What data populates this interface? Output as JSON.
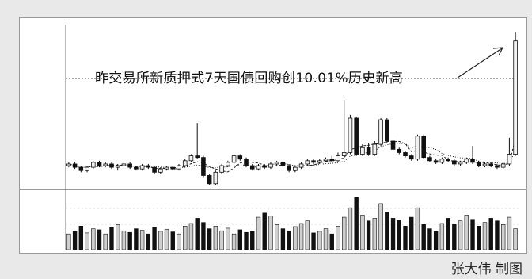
{
  "headline": "昨交易所新质押式7天国债回购创10.01%历史新高",
  "credit": "张大伟 制图",
  "chart_data": {
    "type": "candlestick-with-volume",
    "title": "",
    "xlabel": "",
    "ylabel": "",
    "price_axis_labels": [
      "",
      "",
      "",
      ""
    ],
    "volume_axis_labels": [
      "",
      "",
      ""
    ],
    "volume_legend": "",
    "price_ylim": [
      0.5,
      10.5
    ],
    "reference_line": 7.2,
    "colors": {
      "up": "#f2f2f2",
      "down": "#111111",
      "ma": "#222222",
      "edge": "#111111"
    },
    "candles": [
      [
        1.9,
        2.0,
        2.1,
        1.8
      ],
      [
        2.0,
        1.8,
        2.1,
        1.7
      ],
      [
        1.8,
        1.6,
        1.9,
        1.5
      ],
      [
        1.6,
        1.8,
        1.9,
        1.5
      ],
      [
        1.8,
        2.1,
        2.2,
        1.7
      ],
      [
        2.1,
        1.9,
        2.2,
        1.8
      ],
      [
        1.9,
        2.0,
        2.1,
        1.8
      ],
      [
        2.0,
        1.8,
        2.1,
        1.7
      ],
      [
        1.8,
        1.9,
        2.0,
        1.6
      ],
      [
        1.9,
        2.0,
        2.1,
        1.8
      ],
      [
        2.0,
        1.8,
        2.1,
        1.7
      ],
      [
        1.8,
        1.7,
        1.9,
        1.6
      ],
      [
        1.7,
        1.9,
        2.0,
        1.6
      ],
      [
        1.9,
        1.8,
        2.0,
        1.7
      ],
      [
        1.8,
        1.5,
        1.9,
        1.4
      ],
      [
        1.5,
        1.7,
        1.8,
        1.4
      ],
      [
        1.7,
        1.8,
        1.9,
        1.6
      ],
      [
        1.8,
        1.7,
        1.9,
        1.6
      ],
      [
        1.7,
        1.9,
        2.0,
        1.6
      ],
      [
        1.9,
        2.2,
        2.3,
        1.8
      ],
      [
        2.2,
        2.5,
        2.6,
        2.1
      ],
      [
        2.5,
        2.4,
        4.5,
        2.3
      ],
      [
        2.4,
        1.3,
        2.5,
        1.2
      ],
      [
        1.3,
        0.8,
        1.4,
        0.7
      ],
      [
        0.8,
        1.5,
        1.6,
        0.7
      ],
      [
        1.5,
        1.9,
        2.0,
        1.4
      ],
      [
        1.9,
        2.1,
        2.2,
        1.8
      ],
      [
        2.1,
        2.5,
        2.6,
        2.0
      ],
      [
        2.5,
        2.3,
        2.6,
        2.2
      ],
      [
        2.3,
        1.9,
        2.4,
        1.8
      ],
      [
        1.9,
        1.7,
        2.0,
        1.6
      ],
      [
        1.7,
        1.9,
        2.0,
        1.6
      ],
      [
        1.9,
        1.8,
        2.0,
        1.7
      ],
      [
        1.8,
        2.0,
        2.1,
        1.7
      ],
      [
        2.0,
        2.1,
        2.2,
        1.9
      ],
      [
        2.1,
        1.9,
        2.2,
        1.8
      ],
      [
        1.9,
        1.6,
        2.0,
        1.5
      ],
      [
        1.6,
        1.8,
        1.9,
        1.5
      ],
      [
        1.8,
        2.0,
        2.1,
        1.7
      ],
      [
        2.0,
        2.2,
        2.3,
        1.9
      ],
      [
        2.2,
        2.1,
        2.3,
        2.0
      ],
      [
        2.1,
        2.2,
        2.3,
        2.0
      ],
      [
        2.2,
        2.3,
        2.4,
        2.1
      ],
      [
        2.3,
        2.2,
        2.5,
        2.1
      ],
      [
        2.2,
        2.5,
        2.7,
        2.1
      ],
      [
        2.5,
        2.7,
        5.9,
        2.4
      ],
      [
        2.7,
        4.8,
        5.0,
        2.6
      ],
      [
        4.8,
        2.6,
        4.9,
        2.5
      ],
      [
        2.6,
        3.0,
        3.2,
        2.5
      ],
      [
        3.0,
        2.6,
        3.3,
        2.5
      ],
      [
        2.6,
        3.2,
        3.4,
        2.5
      ],
      [
        3.2,
        4.7,
        4.8,
        3.1
      ],
      [
        4.7,
        3.4,
        4.8,
        3.3
      ],
      [
        3.4,
        2.9,
        3.5,
        2.8
      ],
      [
        2.9,
        2.7,
        3.0,
        2.6
      ],
      [
        2.7,
        2.5,
        2.8,
        2.4
      ],
      [
        2.5,
        2.3,
        2.6,
        2.2
      ],
      [
        2.3,
        3.7,
        3.8,
        2.2
      ],
      [
        3.7,
        2.4,
        3.8,
        2.3
      ],
      [
        2.4,
        2.2,
        2.5,
        2.1
      ],
      [
        2.2,
        2.1,
        2.3,
        2.0
      ],
      [
        2.1,
        2.3,
        2.4,
        2.0
      ],
      [
        2.3,
        2.2,
        2.4,
        2.1
      ],
      [
        2.2,
        2.0,
        2.3,
        1.9
      ],
      [
        2.0,
        2.1,
        2.2,
        1.9
      ],
      [
        2.1,
        2.3,
        2.4,
        2.0
      ],
      [
        2.3,
        2.1,
        3.1,
        2.0
      ],
      [
        2.1,
        1.9,
        2.2,
        1.8
      ],
      [
        1.9,
        2.0,
        2.1,
        1.8
      ],
      [
        2.0,
        1.9,
        2.1,
        1.8
      ],
      [
        1.9,
        1.8,
        2.0,
        1.7
      ],
      [
        1.8,
        2.0,
        2.1,
        1.7
      ],
      [
        2.0,
        2.6,
        3.6,
        1.9
      ],
      [
        2.6,
        9.5,
        10.01,
        2.5
      ]
    ],
    "volumes": [
      0.3,
      0.35,
      0.45,
      0.32,
      0.4,
      0.38,
      0.3,
      0.42,
      0.48,
      0.36,
      0.33,
      0.4,
      0.37,
      0.3,
      0.43,
      0.35,
      0.39,
      0.34,
      0.3,
      0.45,
      0.5,
      0.6,
      0.52,
      0.4,
      0.45,
      0.36,
      0.41,
      0.3,
      0.38,
      0.33,
      0.35,
      0.62,
      0.7,
      0.64,
      0.48,
      0.4,
      0.36,
      0.44,
      0.5,
      0.55,
      0.32,
      0.35,
      0.4,
      0.3,
      0.45,
      0.62,
      0.8,
      1.0,
      0.66,
      0.55,
      0.6,
      0.88,
      0.72,
      0.6,
      0.57,
      0.45,
      0.62,
      0.8,
      0.48,
      0.4,
      0.35,
      0.5,
      0.6,
      0.48,
      0.55,
      0.66,
      0.58,
      0.45,
      0.52,
      0.6,
      0.55,
      0.48,
      0.62,
      0.4
    ]
  }
}
